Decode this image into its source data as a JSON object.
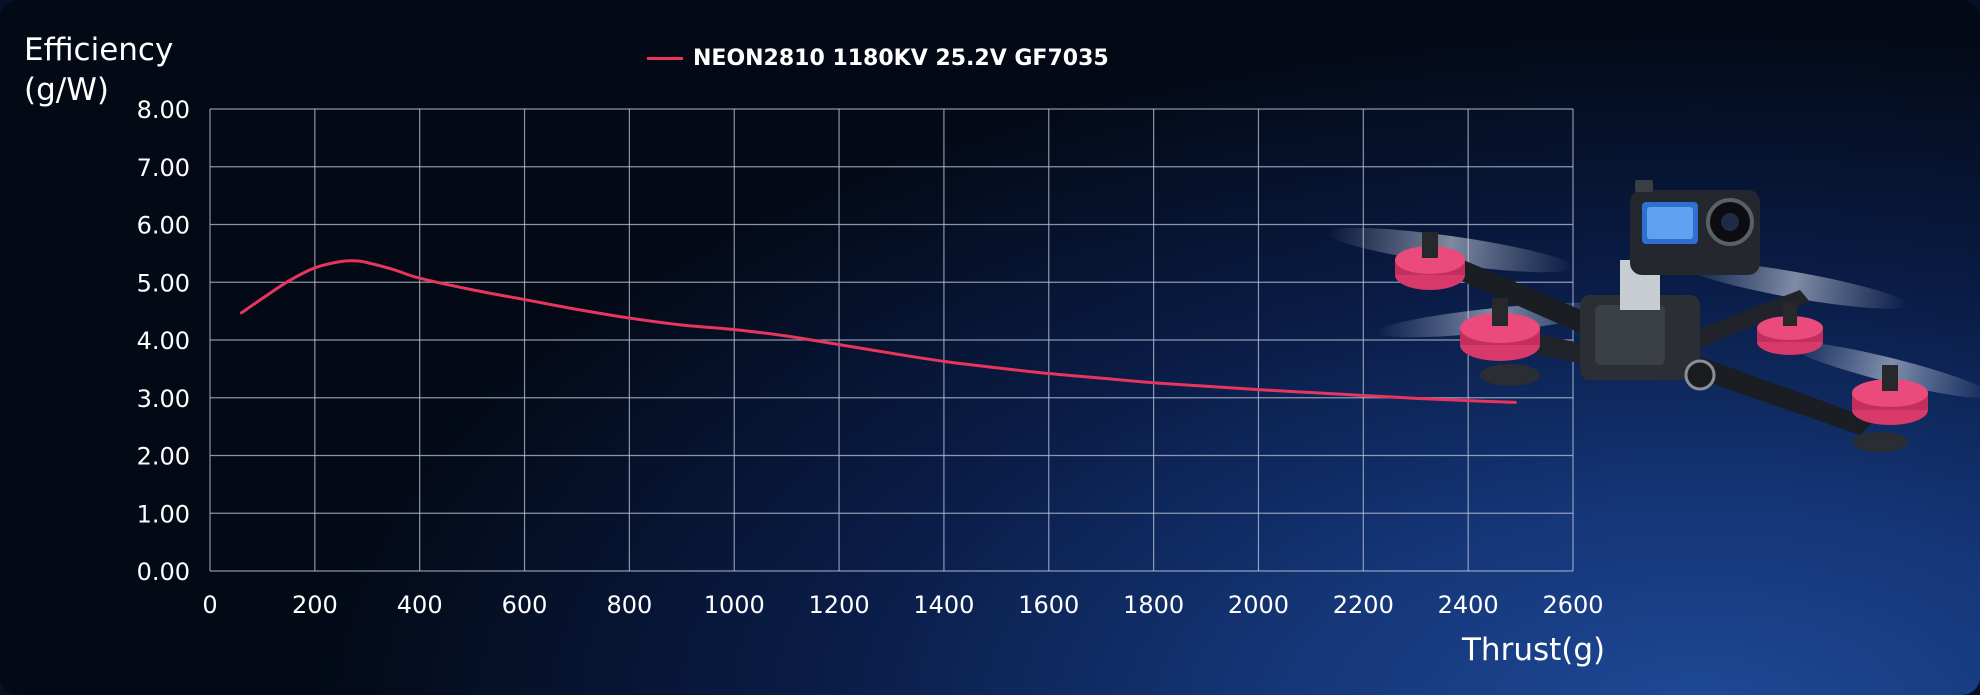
{
  "chart_data": {
    "type": "line",
    "ylabel": "Efficiency\n(g/W)",
    "xlabel": "Thrust(g)",
    "xlim": [
      0,
      2600
    ],
    "ylim": [
      0,
      8
    ],
    "x_ticks": [
      "0",
      "200",
      "400",
      "600",
      "800",
      "1000",
      "1200",
      "1400",
      "1600",
      "1800",
      "2000",
      "2200",
      "2400",
      "2600"
    ],
    "y_ticks": [
      "0.00",
      "1.00",
      "2.00",
      "3.00",
      "4.00",
      "5.00",
      "6.00",
      "7.00",
      "8.00"
    ],
    "grid": true,
    "legend_position": "top",
    "series": [
      {
        "name": "NEON2810 1180KV 25.2V GF7035",
        "color": "#e8355e",
        "x": [
          60,
          100,
          150,
          200,
          250,
          280,
          300,
          350,
          400,
          500,
          600,
          700,
          800,
          900,
          1000,
          1100,
          1200,
          1300,
          1400,
          1500,
          1600,
          1700,
          1800,
          1900,
          2000,
          2100,
          2200,
          2300,
          2400,
          2490
        ],
        "y": [
          4.47,
          4.72,
          5.02,
          5.25,
          5.36,
          5.37,
          5.34,
          5.22,
          5.07,
          4.87,
          4.7,
          4.53,
          4.38,
          4.26,
          4.18,
          4.07,
          3.92,
          3.77,
          3.63,
          3.52,
          3.42,
          3.34,
          3.26,
          3.2,
          3.14,
          3.09,
          3.04,
          2.99,
          2.95,
          2.92
        ]
      }
    ]
  }
}
